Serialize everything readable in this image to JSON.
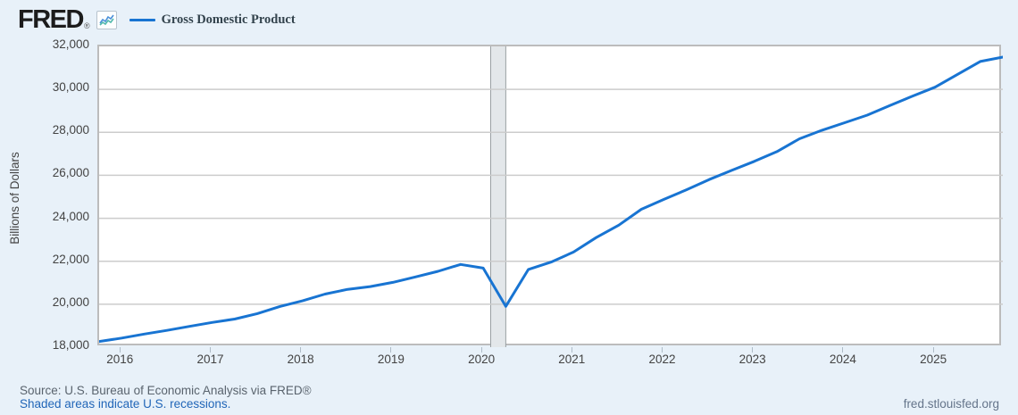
{
  "header": {
    "logo_text": "FRED",
    "registered_mark": "®",
    "legend": {
      "series_label": "Gross Domestic Product",
      "series_color": "#1874d2"
    }
  },
  "chart_data": {
    "type": "line",
    "title": "",
    "xlabel": "",
    "ylabel": "Billions of Dollars",
    "xlim": [
      2015.75,
      2025.75
    ],
    "ylim": [
      18000,
      32000
    ],
    "grid": "horizontal",
    "legend_position": "top-left",
    "y_ticks": [
      {
        "value": 32000,
        "label": "32,000"
      },
      {
        "value": 30000,
        "label": "30,000"
      },
      {
        "value": 28000,
        "label": "28,000"
      },
      {
        "value": 26000,
        "label": "26,000"
      },
      {
        "value": 24000,
        "label": "24,000"
      },
      {
        "value": 22000,
        "label": "22,000"
      },
      {
        "value": 20000,
        "label": "20,000"
      },
      {
        "value": 18000,
        "label": "18,000"
      }
    ],
    "y_gridlines": [
      20000,
      22000,
      24000,
      26000,
      28000,
      30000
    ],
    "x_ticks": [
      {
        "value": 2016,
        "label": "2016"
      },
      {
        "value": 2017,
        "label": "2017"
      },
      {
        "value": 2018,
        "label": "2018"
      },
      {
        "value": 2019,
        "label": "2019"
      },
      {
        "value": 2020,
        "label": "2020"
      },
      {
        "value": 2021,
        "label": "2021"
      },
      {
        "value": 2022,
        "label": "2022"
      },
      {
        "value": 2023,
        "label": "2023"
      },
      {
        "value": 2024,
        "label": "2024"
      },
      {
        "value": 2025,
        "label": "2025"
      }
    ],
    "recession_band": {
      "from": 2020.083,
      "to": 2020.25,
      "fill": "#e3e7ea",
      "edge_color": "#9aa0a4"
    },
    "series": [
      {
        "name": "Gross Domestic Product",
        "color": "#1874d2",
        "frequency": "quarterly",
        "x": [
          2015.75,
          2016.0,
          2016.25,
          2016.5,
          2016.75,
          2017.0,
          2017.25,
          2017.5,
          2017.75,
          2018.0,
          2018.25,
          2018.5,
          2018.75,
          2019.0,
          2019.25,
          2019.5,
          2019.75,
          2020.0,
          2020.25,
          2020.5,
          2020.75,
          2021.0,
          2021.25,
          2021.5,
          2021.75,
          2022.0,
          2022.25,
          2022.5,
          2022.75,
          2023.0,
          2023.25,
          2023.5,
          2023.75,
          2024.0,
          2024.25,
          2024.5,
          2024.75,
          2025.0,
          2025.25,
          2025.5,
          2025.75
        ],
        "values": [
          18260,
          18425,
          18610,
          18780,
          18970,
          19150,
          19310,
          19560,
          19895,
          20155,
          20470,
          20690,
          20820,
          21015,
          21270,
          21530,
          21850,
          21680,
          19900,
          21620,
          21960,
          22430,
          23100,
          23680,
          24420,
          24880,
          25330,
          25800,
          26230,
          26650,
          27100,
          27700,
          28100,
          28450,
          28800,
          29250,
          29680,
          30100,
          30700,
          31300,
          31500
        ]
      }
    ]
  },
  "footer": {
    "source_line": "Source: U.S. Bureau of Economic Analysis via FRED®",
    "recession_note": "Shaded areas indicate U.S. recessions.",
    "site_url": "fred.stlouisfed.org"
  }
}
